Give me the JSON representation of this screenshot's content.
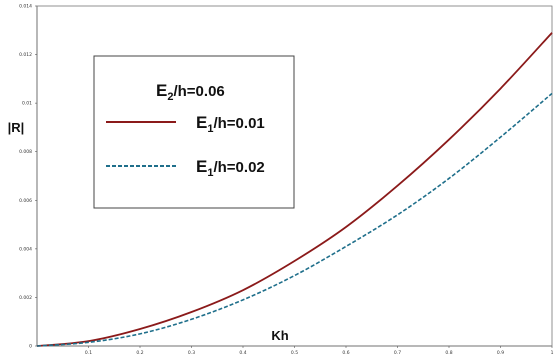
{
  "chart_data": {
    "type": "line",
    "xlabel": "Kh",
    "ylabel": "|R|",
    "xlim": [
      0,
      1
    ],
    "ylim": [
      0,
      0.014
    ],
    "x_ticks": [
      "0.1",
      "0.2",
      "0.3",
      "0.4",
      "0.5",
      "0.6",
      "0.7",
      "0.8",
      "0.9",
      "1"
    ],
    "y_ticks": [
      "0",
      "0.002",
      "0.004",
      "0.006",
      "0.008",
      "0.01",
      "0.012",
      "0.014"
    ],
    "grid": false,
    "legend_position": "top-left",
    "legend_title": {
      "main": "E",
      "sub": "2",
      "rest": "/h=0.06"
    },
    "series": [
      {
        "name": "E1/h=0.01",
        "label_main": "E",
        "label_sub": "1",
        "label_rest": "/h=0.01",
        "color": "#8b1a1a",
        "style": "solid",
        "x": [
          0,
          0.1,
          0.2,
          0.3,
          0.4,
          0.5,
          0.6,
          0.7,
          0.8,
          0.9,
          1.0
        ],
        "y": [
          0,
          0.0002,
          0.0007,
          0.0014,
          0.0023,
          0.0035,
          0.0049,
          0.0066,
          0.0085,
          0.0106,
          0.0129
        ]
      },
      {
        "name": "E1/h=0.02",
        "label_main": "E",
        "label_sub": "1",
        "label_rest": "/h=0.02",
        "color": "#1f6f8b",
        "style": "dashed",
        "x": [
          0,
          0.1,
          0.2,
          0.3,
          0.4,
          0.5,
          0.6,
          0.7,
          0.8,
          0.9,
          1.0
        ],
        "y": [
          0,
          0.00015,
          0.0005,
          0.0011,
          0.0019,
          0.0029,
          0.0041,
          0.0054,
          0.0069,
          0.0086,
          0.0104
        ]
      }
    ]
  }
}
